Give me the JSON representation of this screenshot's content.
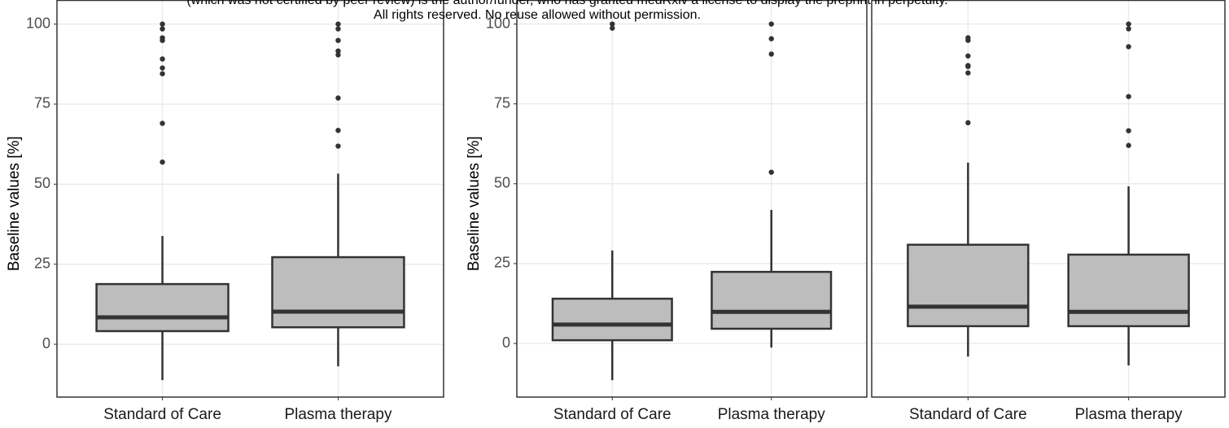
{
  "watermark": [
    "(which was not certified by peer review) is the author/funder, who has granted medRxiv a license to display the preprint in perpetuity.",
    "All rights reserved. No reuse allowed without permission."
  ],
  "chart_data": [
    {
      "type": "boxplot",
      "ylabel": "Baseline values [%]",
      "categories": [
        "Standard of Care",
        "Plasma therapy"
      ],
      "ylim": [
        -16.5,
        107.4
      ],
      "yticks": [
        0,
        25,
        50,
        75,
        100
      ],
      "ytick_labels": true,
      "grid": true,
      "color": "#bdbdbd",
      "boxes": [
        {
          "whislo": -11.2,
          "q1": 4.1,
          "median": 8.4,
          "q3": 18.8,
          "whishi": 33.8,
          "outliers": [
            100,
            98.5,
            95.7,
            94.9,
            89.1,
            86.3,
            84.5,
            69,
            56.9
          ]
        },
        {
          "whislo": -6.9,
          "q1": 5.3,
          "median": 10.2,
          "q3": 27.2,
          "whishi": 53.3,
          "outliers": [
            100,
            98.5,
            94.9,
            91.6,
            90.4,
            76.9,
            66.8,
            61.9
          ]
        }
      ]
    },
    {
      "type": "boxplot",
      "ylabel": "Baseline values [%]",
      "categories": [
        "Standard of Care",
        "Plasma therapy"
      ],
      "ylim": [
        -16.8,
        107.4
      ],
      "yticks": [
        0,
        25,
        50,
        75,
        100
      ],
      "ytick_labels": true,
      "grid": true,
      "color": "#bdbdbd",
      "boxes": [
        {
          "whislo": -11.5,
          "q1": 1,
          "median": 5.9,
          "q3": 14,
          "whishi": 29.1,
          "outliers": [
            100,
            98.7
          ]
        },
        {
          "whislo": -1.3,
          "q1": 4.6,
          "median": 9.9,
          "q3": 22.4,
          "whishi": 41.8,
          "outliers": [
            100,
            95.4,
            90.6,
            53.6
          ]
        }
      ]
    },
    {
      "type": "boxplot",
      "categories": [
        "Standard of Care",
        "Plasma therapy"
      ],
      "ylim": [
        -16.8,
        107.4
      ],
      "yticks": [
        0,
        25,
        50,
        75,
        100
      ],
      "ytick_labels": false,
      "grid": true,
      "color": "#bdbdbd",
      "boxes": [
        {
          "whislo": -4.1,
          "q1": 5.4,
          "median": 11.5,
          "q3": 30.9,
          "whishi": 56.6,
          "outliers": [
            95.7,
            94.9,
            90,
            87,
            86.7,
            84.7,
            69.1
          ]
        },
        {
          "whislo": -6.9,
          "q1": 5.4,
          "median": 9.9,
          "q3": 27.8,
          "whishi": 49.2,
          "outliers": [
            100,
            98.5,
            92.9,
            77.3,
            66.6,
            62
          ]
        }
      ]
    }
  ]
}
